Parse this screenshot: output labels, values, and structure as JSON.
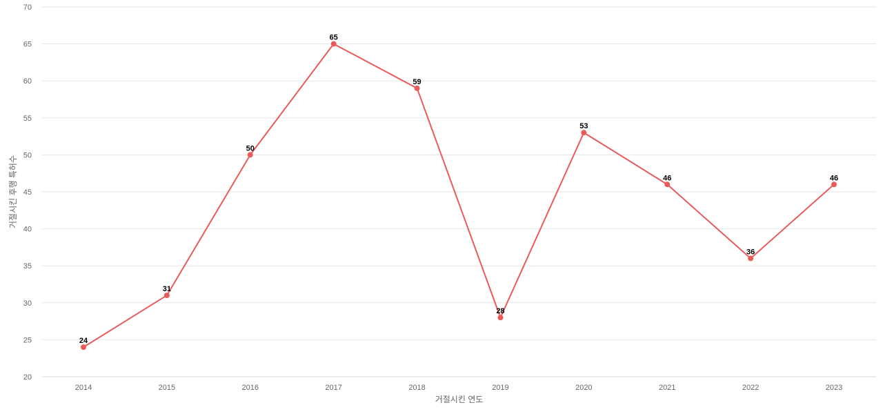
{
  "chart_data": {
    "type": "line",
    "title": "",
    "xlabel": "거절시킨 연도",
    "ylabel": "거절시킨 후행 특허수",
    "categories": [
      "2014",
      "2015",
      "2016",
      "2017",
      "2018",
      "2019",
      "2020",
      "2021",
      "2022",
      "2023"
    ],
    "series": [
      {
        "values": [
          24,
          31,
          50,
          65,
          59,
          28,
          53,
          46,
          36,
          46
        ],
        "color": "#ea5a5a"
      }
    ],
    "ylim": [
      20,
      70
    ],
    "yticks": [
      20,
      25,
      30,
      35,
      40,
      45,
      50,
      55,
      60,
      65,
      70
    ],
    "grid": true,
    "grid_color": "#e6e6e6",
    "data_labels": true,
    "legend": "none"
  }
}
